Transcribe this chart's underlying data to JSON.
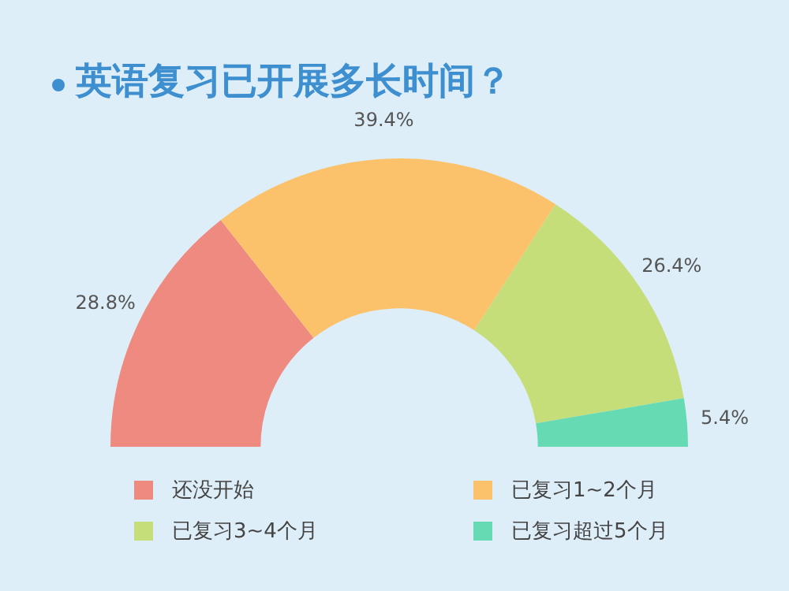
{
  "chart_data": {
    "type": "donut",
    "title": "英语复习已开展多长时间？",
    "categories": [
      "还没开始",
      "已复习1~2个月",
      "已复习3~4个月",
      "已复习超过5个月"
    ],
    "values": [
      28.8,
      39.4,
      26.4,
      5.4
    ],
    "colors": [
      "#ef8a80",
      "#fbc26b",
      "#c5de7a",
      "#66dab3"
    ],
    "value_labels": [
      "28.8%",
      "39.4%",
      "26.4%",
      "5.4%"
    ],
    "legend": "bottom"
  }
}
